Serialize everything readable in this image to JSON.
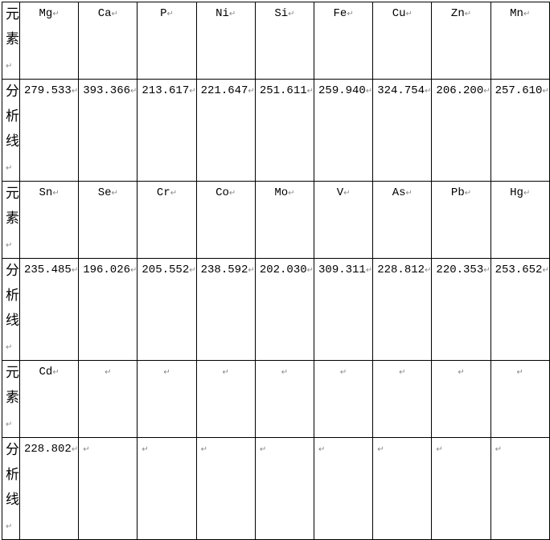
{
  "row_label_element": [
    "元",
    "素"
  ],
  "row_label_line": [
    "分",
    "析",
    "线"
  ],
  "paragraph_mark": "↵",
  "groups": [
    {
      "elements": [
        "Mg",
        "Ca",
        "P",
        "Ni",
        "Si",
        "Fe",
        "Cu",
        "Zn",
        "Mn"
      ],
      "lines": [
        "279.533",
        "393.366",
        "213.617",
        "221.647",
        "251.611",
        "259.940",
        "324.754",
        "206.200",
        "257.610"
      ]
    },
    {
      "elements": [
        "Sn",
        "Se",
        "Cr",
        "Co",
        "Mo",
        "V",
        "As",
        "Pb",
        "Hg"
      ],
      "lines": [
        "235.485",
        "196.026",
        "205.552",
        "238.592",
        "202.030",
        "309.311",
        "228.812",
        "220.353",
        "253.652"
      ]
    },
    {
      "elements": [
        "Cd",
        "",
        "",
        "",
        "",
        "",
        "",
        "",
        ""
      ],
      "lines": [
        "228.802",
        "",
        "",
        "",
        "",
        "",
        "",
        "",
        ""
      ]
    }
  ]
}
